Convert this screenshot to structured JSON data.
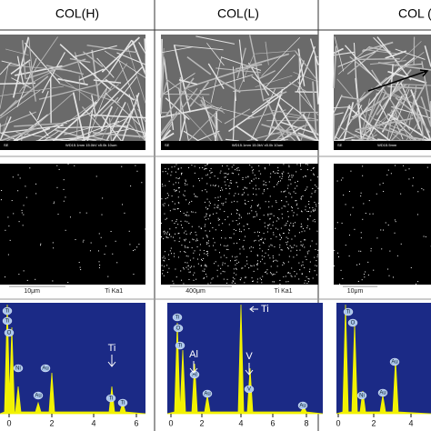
{
  "columns": [
    {
      "header": "COL(H)",
      "sem_footer": [
        "SE",
        "WD15.1mm 15.0kV x5.0k 10um"
      ],
      "map_scale": "10μm",
      "map_label": "Ti Ka1",
      "peak_labels": [
        "Ti",
        "Ti",
        "O",
        "Ni",
        "Au",
        "Au",
        "Ti",
        "Ti"
      ],
      "callout": "Ti",
      "axis": [
        "0",
        "2",
        "4",
        "6"
      ]
    },
    {
      "header": "COL(L)",
      "sem_footer": [
        "SE",
        "WD15.1mm 15.0kV x5.0k 10um"
      ],
      "map_scale": "400μm",
      "map_label": "Ti Ka1",
      "peak_labels": [
        "Ti",
        "O",
        "Ti",
        "Al",
        "Au",
        "V",
        "Au"
      ],
      "callouts": [
        "Al",
        "V",
        "Ti"
      ],
      "axis": [
        "0",
        "2",
        "4",
        "6",
        "8"
      ]
    },
    {
      "header": "COL (",
      "sem_footer": [
        "SE",
        "WD15.5mm"
      ],
      "map_scale": "10μm",
      "peak_labels": [
        "Ti",
        "O",
        "Ni",
        "Au",
        "Au"
      ],
      "axis": [
        "0",
        "2",
        "4"
      ]
    }
  ]
}
